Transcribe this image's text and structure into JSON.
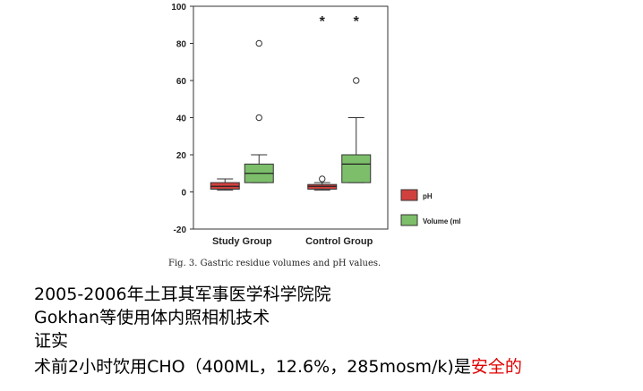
{
  "chart_data": {
    "type": "boxplot",
    "categories": [
      "Study Group",
      "Control Group"
    ],
    "ylim": [
      -20,
      100
    ],
    "yticks": [
      -20,
      0,
      20,
      40,
      60,
      80,
      100
    ],
    "ytick_labels": [
      "-20",
      "0",
      "20",
      "40",
      "60",
      "80",
      "100"
    ],
    "series": [
      {
        "name": "pH",
        "color": "#d0413e",
        "boxes": [
          {
            "whisker_low": 1,
            "q1": 1.5,
            "median": 3,
            "q3": 5,
            "whisker_high": 7,
            "outliers": []
          },
          {
            "whisker_low": 1,
            "q1": 1.5,
            "median": 3,
            "q3": 4,
            "whisker_high": 5,
            "outliers": [
              7
            ]
          }
        ]
      },
      {
        "name": "Volume (ml)",
        "color": "#7cbe6a",
        "boxes": [
          {
            "whisker_low": 5,
            "q1": 5,
            "median": 10,
            "q3": 15,
            "whisker_high": 20,
            "outliers": [
              40,
              80
            ]
          },
          {
            "whisker_low": 5,
            "q1": 5,
            "median": 15,
            "q3": 20,
            "whisker_high": 40,
            "outliers": [
              60
            ]
          }
        ]
      }
    ],
    "annotations": [
      {
        "text": "*",
        "category": "Control Group",
        "side": "left"
      },
      {
        "text": "*",
        "category": "Control Group",
        "side": "right"
      }
    ],
    "legend": {
      "position": "right",
      "labels": [
        "pH",
        "Volume (ml"
      ]
    },
    "caption": "Fig. 3.  Gastric residue volumes and pH values."
  },
  "slide": {
    "line1": "2005-2006年土耳其军事医学科学院院",
    "line2": "Gokhan等使用体内照相机技术",
    "line3": "证实",
    "line4_prefix": "术前2小时饮用CHO（400ML，12.6%，285mosm/k)是",
    "line4_highlight": "安全的"
  },
  "colors": {
    "highlight": "#e00000"
  }
}
